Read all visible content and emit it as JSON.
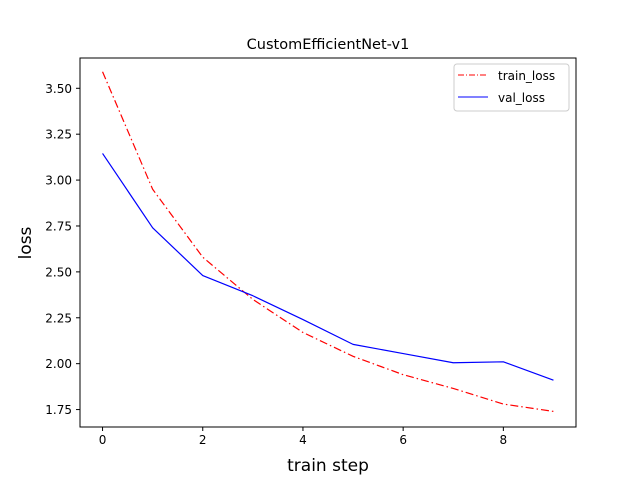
{
  "chart_data": {
    "type": "line",
    "title": "CustomEfficientNet-v1",
    "xlabel": "train step",
    "ylabel": "loss",
    "xlim": [
      -0.45,
      9.45
    ],
    "ylim": [
      1.655,
      3.665
    ],
    "xticks": [
      0,
      2,
      4,
      6,
      8
    ],
    "xtick_labels": [
      "0",
      "2",
      "4",
      "6",
      "8"
    ],
    "yticks": [
      1.75,
      2.0,
      2.25,
      2.5,
      2.75,
      3.0,
      3.25,
      3.5
    ],
    "ytick_labels": [
      "1.75",
      "2.00",
      "2.25",
      "2.50",
      "2.75",
      "3.00",
      "3.25",
      "3.50"
    ],
    "legend_position": "top-right",
    "grid": false,
    "x": [
      0,
      1,
      2,
      3,
      4,
      5,
      6,
      7,
      8,
      9
    ],
    "series": [
      {
        "name": "train_loss",
        "color": "#ff0000",
        "linestyle": "dashdot",
        "values": [
          3.59,
          2.95,
          2.58,
          2.35,
          2.17,
          2.04,
          1.94,
          1.865,
          1.78,
          1.74
        ]
      },
      {
        "name": "val_loss",
        "color": "#0000ff",
        "linestyle": "solid",
        "values": [
          3.145,
          2.74,
          2.48,
          2.37,
          2.24,
          2.105,
          2.055,
          2.005,
          2.01,
          1.91
        ]
      }
    ]
  }
}
